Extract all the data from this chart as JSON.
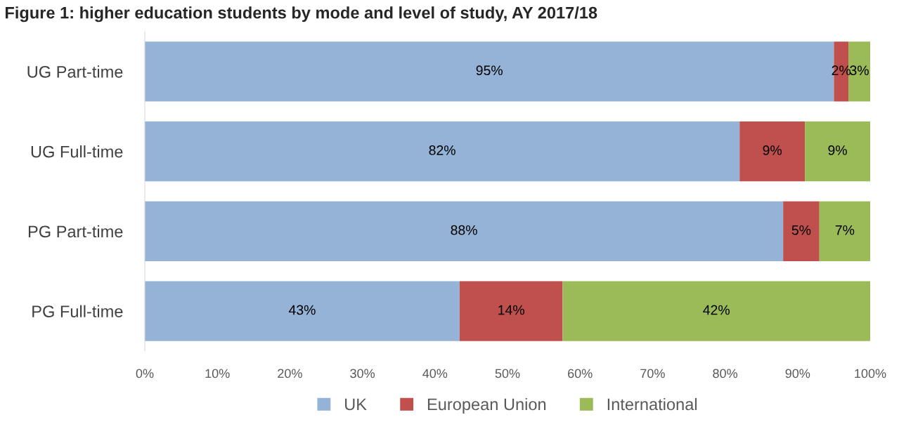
{
  "chart_data": {
    "type": "bar",
    "orientation": "horizontal",
    "stacked": true,
    "title": "Figure 1: higher education students by mode and level of study, AY 2017/18",
    "categories": [
      "UG Part-time",
      "UG Full-time",
      "PG Part-time",
      "PG Full-time"
    ],
    "series": [
      {
        "name": "UK",
        "color": "#95b3d7",
        "values": [
          95,
          82,
          88,
          43.4
        ],
        "value_labels": [
          "95%",
          "82%",
          "88%",
          "43%"
        ]
      },
      {
        "name": "European Union",
        "color": "#c0504d",
        "values": [
          2,
          9,
          5,
          14.2
        ],
        "value_labels": [
          "2%",
          "9%",
          "5%",
          "14%"
        ]
      },
      {
        "name": "International",
        "color": "#9bbb59",
        "values": [
          3,
          9,
          7,
          42.4
        ],
        "value_labels": [
          "3%",
          "9%",
          "7%",
          "42%"
        ]
      }
    ],
    "xlim": [
      0,
      100
    ],
    "xticks": [
      {
        "value": 0,
        "label": "0%"
      },
      {
        "value": 10,
        "label": "10%"
      },
      {
        "value": 20,
        "label": "20%"
      },
      {
        "value": 30,
        "label": "30%"
      },
      {
        "value": 40,
        "label": "40%"
      },
      {
        "value": 50,
        "label": "50%"
      },
      {
        "value": 60,
        "label": "60%"
      },
      {
        "value": 70,
        "label": "70%"
      },
      {
        "value": 80,
        "label": "80%"
      },
      {
        "value": 90,
        "label": "90%"
      },
      {
        "value": 100,
        "label": "100%"
      }
    ],
    "grid": false,
    "legend": "bottom"
  }
}
